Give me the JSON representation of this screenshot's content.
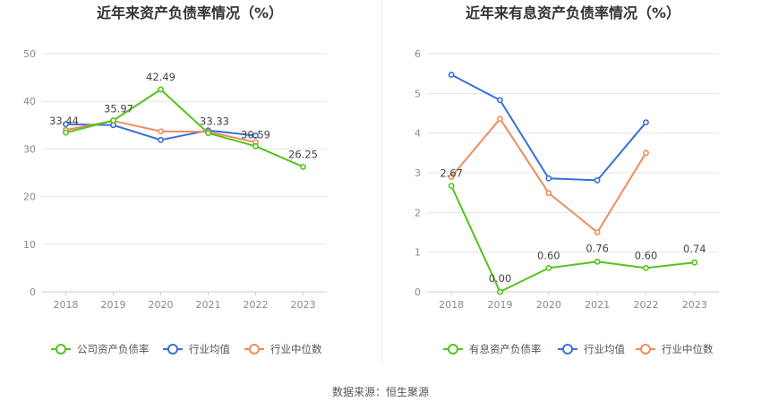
{
  "source_text": "数据来源：恒生聚源",
  "chart_data": [
    {
      "type": "line",
      "title": "近年来资产负债率情况（%）",
      "xlabel": "",
      "ylabel": "",
      "ylim": [
        0,
        50
      ],
      "yticks": [
        0,
        10,
        20,
        30,
        40,
        50
      ],
      "categories": [
        "2018",
        "2019",
        "2020",
        "2021",
        "2022",
        "2023"
      ],
      "grid": true,
      "legend_position": "bottom",
      "series": [
        {
          "name": "公司资产负债率",
          "color": "#52c41a",
          "labeled": true,
          "values": [
            33.44,
            35.97,
            42.49,
            33.33,
            30.59,
            26.25
          ]
        },
        {
          "name": "行业均值",
          "color": "#3a6fd8",
          "labeled": false,
          "values": [
            35.2,
            35.0,
            31.9,
            33.9,
            32.8,
            null
          ]
        },
        {
          "name": "行业中位数",
          "color": "#f08c5a",
          "labeled": false,
          "values": [
            34.0,
            35.9,
            33.7,
            33.6,
            31.4,
            null
          ]
        }
      ]
    },
    {
      "type": "line",
      "title": "近年来有息资产负债率情况（%）",
      "xlabel": "",
      "ylabel": "",
      "ylim": [
        0,
        6
      ],
      "yticks": [
        0,
        1,
        2,
        3,
        4,
        5,
        6
      ],
      "categories": [
        "2018",
        "2019",
        "2020",
        "2021",
        "2022",
        "2023"
      ],
      "grid": true,
      "legend_position": "bottom",
      "series": [
        {
          "name": "有息资产负债率",
          "color": "#52c41a",
          "labeled": true,
          "values": [
            2.67,
            0.0,
            0.6,
            0.76,
            0.6,
            0.74
          ],
          "labels": [
            "2.67",
            "0.00",
            "0.60",
            "0.76",
            "0.60",
            "0.74"
          ]
        },
        {
          "name": "行业均值",
          "color": "#3a6fd8",
          "labeled": false,
          "values": [
            5.47,
            4.83,
            2.86,
            2.81,
            4.27,
            null
          ]
        },
        {
          "name": "行业中位数",
          "color": "#f08c5a",
          "labeled": false,
          "values": [
            2.9,
            4.36,
            2.49,
            1.5,
            3.5,
            null
          ]
        }
      ]
    }
  ]
}
